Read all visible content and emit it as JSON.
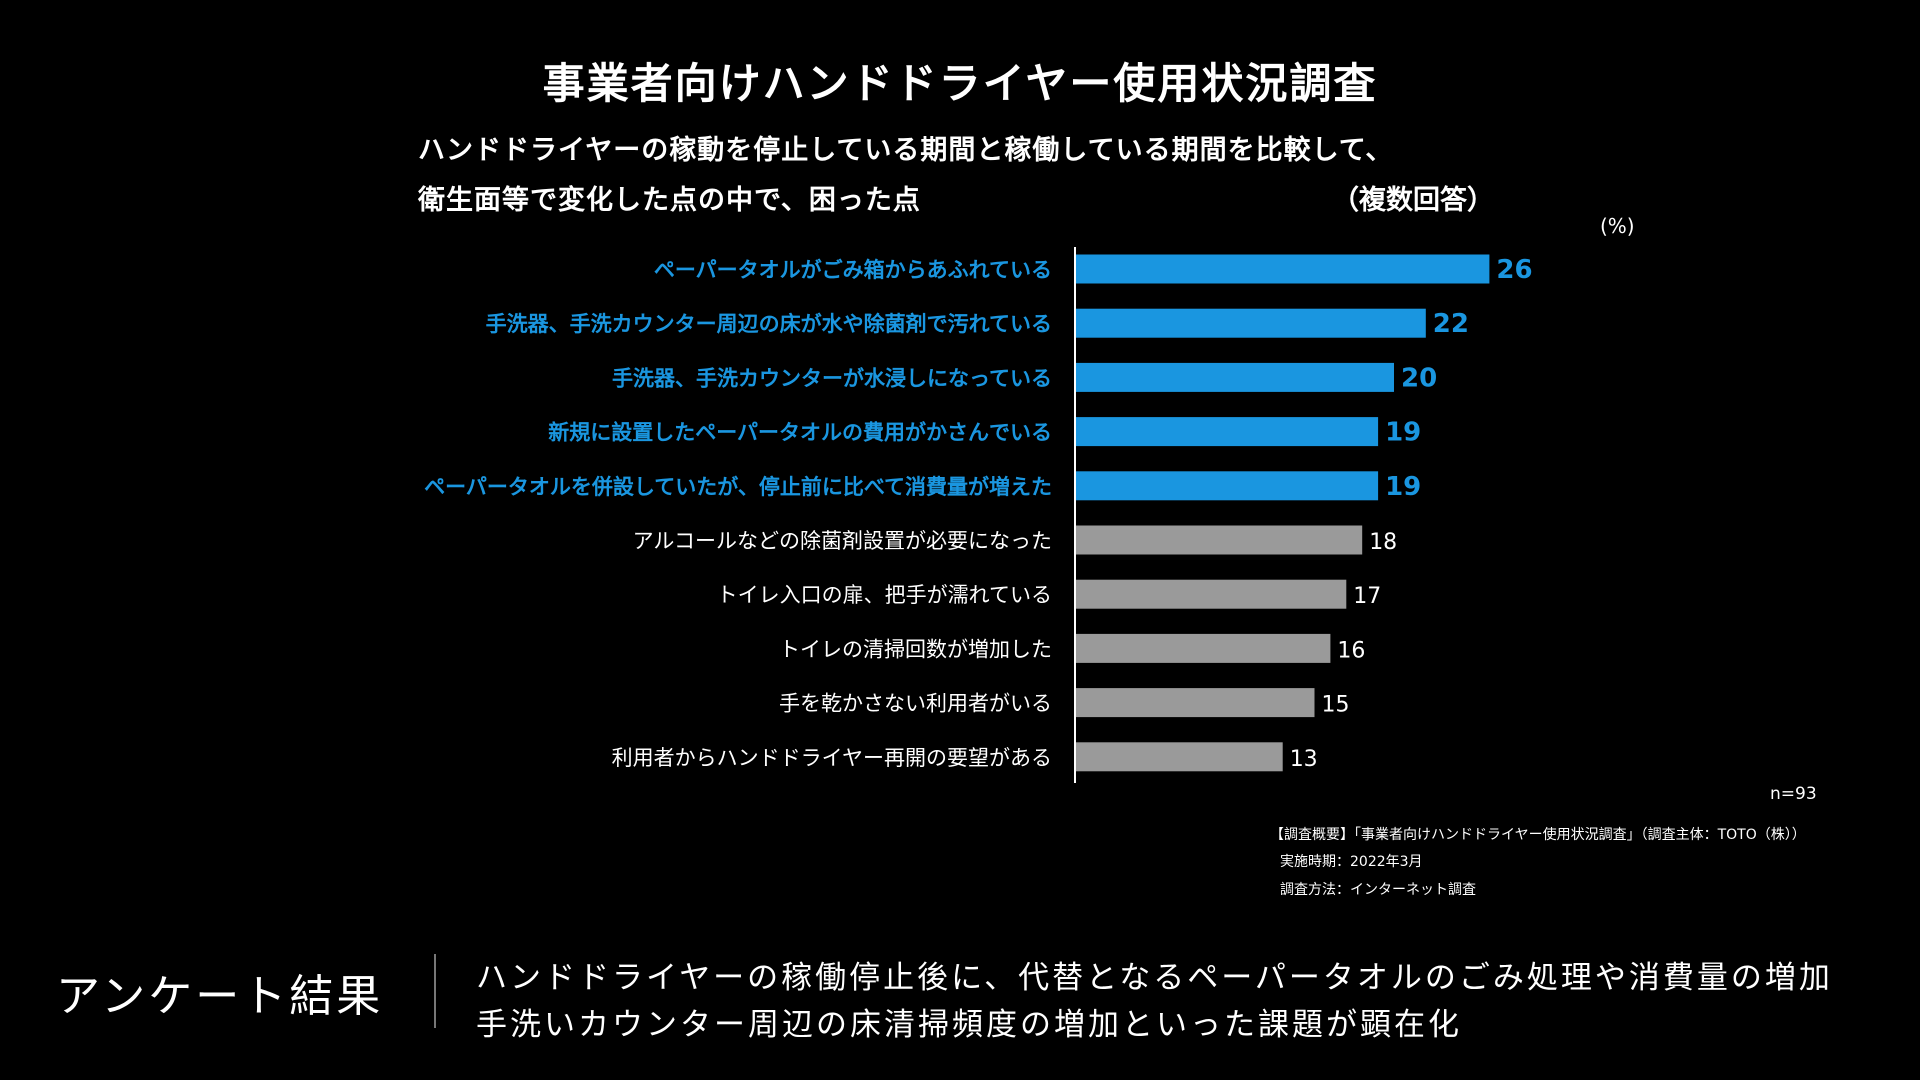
{
  "title": "事業者向けハンドドライヤー使用状況調査",
  "subtitle_line1": "ハンドドライヤーの稼動を停止している期間と稼働している期間を比較して、",
  "subtitle_line2": "衛生面等で変化した点の中で、困った点",
  "subtitle_note": "（複数回答）",
  "unit_label": "(%)",
  "n_label": "n=93",
  "survey": {
    "line1": "【調査概要】「事業者向けハンドドライヤー使用状況調査」（調査主体：TOTO（株））",
    "line2": "実施時期：2022年3月",
    "line3": "調査方法：インターネット調査"
  },
  "result": {
    "label": "アンケート結果",
    "line1": "ハンドドライヤーの稼働停止後に、代替となるペーパータオルのごみ処理や消費量の増加",
    "line2": "手洗いカウンター周辺の床清掃頻度の増加といった課題が顕在化"
  },
  "colors": {
    "highlight": "#1a96e0",
    "normal_bar": "#9a9a9a",
    "normal_text": "#ffffff"
  },
  "chart_data": {
    "type": "bar",
    "orientation": "horizontal",
    "unit": "%",
    "categories": [
      "ペーパータオルがごみ箱からあふれている",
      "手洗器、手洗カウンター周辺の床が水や除菌剤で汚れている",
      "手洗器、手洗カウンターが水浸しになっている",
      "新規に設置したペーパータオルの費用がかさんでいる",
      "ペーパータオルを併設していたが、停止前に比べて消費量が増えた",
      "アルコールなどの除菌剤設置が必要になった",
      "トイレ入口の扉、把手が濡れている",
      "トイレの清掃回数が増加した",
      "手を乾かさない利用者がいる",
      "利用者からハンドドライヤー再開の要望がある"
    ],
    "values": [
      26,
      22,
      20,
      19,
      19,
      18,
      17,
      16,
      15,
      13
    ],
    "highlighted": [
      true,
      true,
      true,
      true,
      true,
      false,
      false,
      false,
      false,
      false
    ],
    "xlim": [
      0,
      30
    ],
    "n": 93
  }
}
